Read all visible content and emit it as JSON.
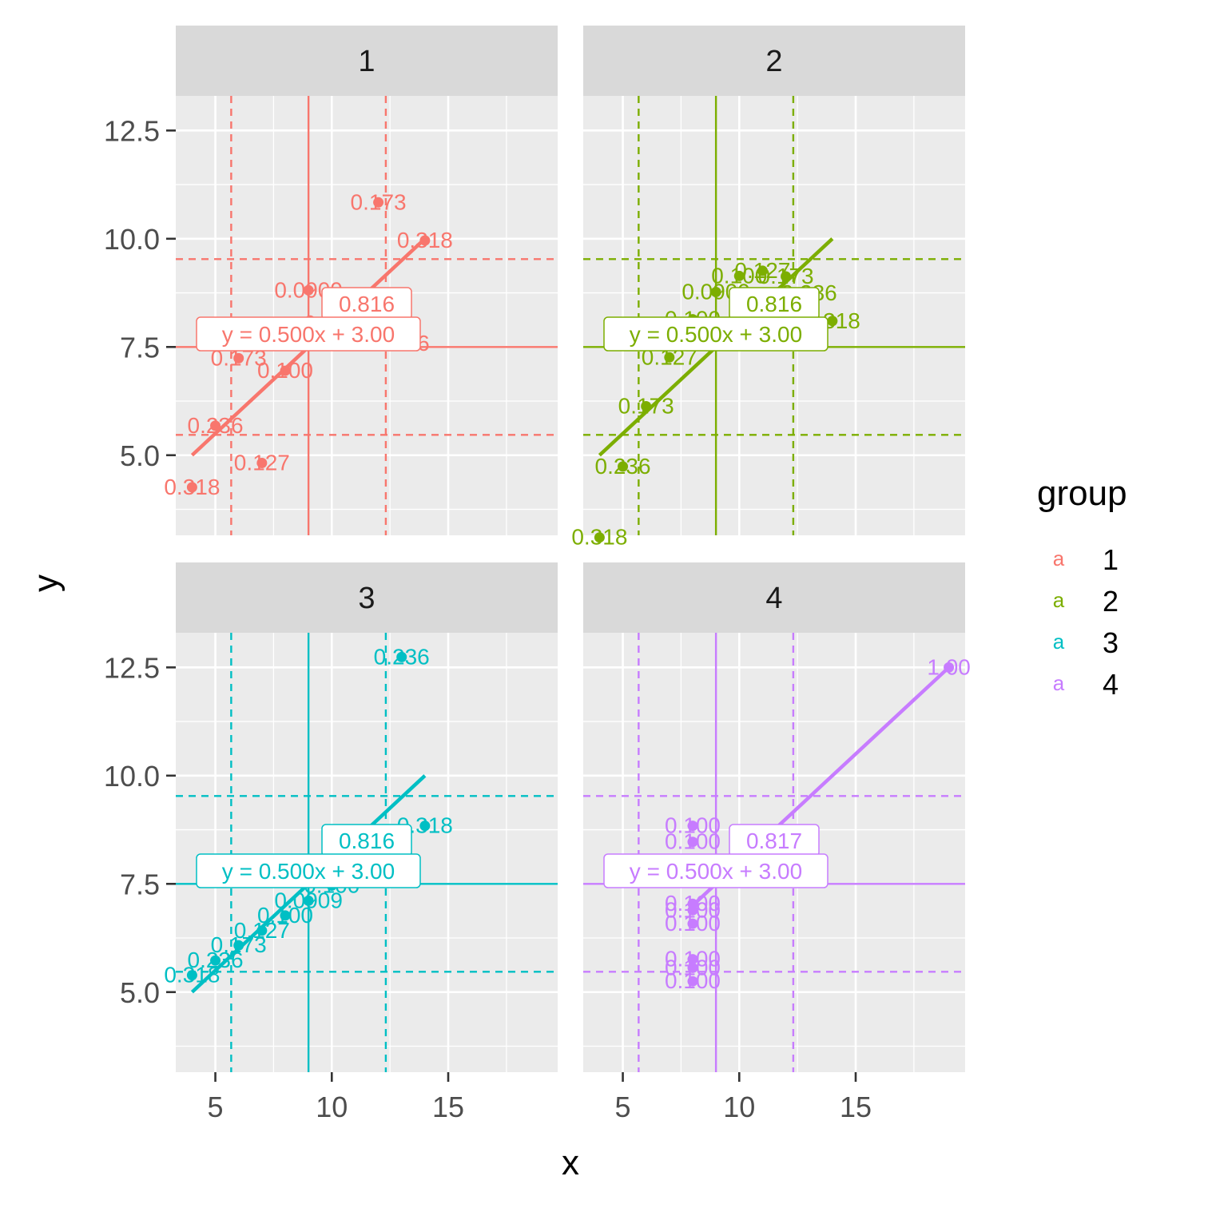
{
  "chart_data": {
    "type": "scatter",
    "facet_var": "group",
    "xlabel": "x",
    "ylabel": "y",
    "xlim": [
      3.3,
      19.7
    ],
    "ylim": [
      3.15,
      13.3
    ],
    "xticks": [
      "5",
      "10",
      "15"
    ],
    "xtick_values": [
      5,
      10,
      15
    ],
    "yticks": [
      "5.0",
      "7.5",
      "10.0",
      "12.5"
    ],
    "ytick_values": [
      5.0,
      7.5,
      10.0,
      12.5
    ],
    "grid": true,
    "legend": {
      "title": "group",
      "position": "right",
      "key_glyph": "a",
      "entries": [
        "1",
        "2",
        "3",
        "4"
      ]
    },
    "reference_lines": {
      "mean_x": 9,
      "mean_y": 7.5,
      "dashed_x": [
        5.68,
        12.32
      ],
      "dashed_y": [
        5.47,
        9.53
      ]
    },
    "panels": [
      {
        "strip": "1",
        "color": "#F8766D",
        "equation": "y = 0.500x + 3.00",
        "r_label": "0.816",
        "fit": {
          "x0": 4,
          "x1": 14,
          "slope": 0.5,
          "intercept": 3.0
        },
        "points": [
          {
            "x": 10,
            "y": 8.04,
            "label": "0.100"
          },
          {
            "x": 8,
            "y": 6.95,
            "label": "0.100"
          },
          {
            "x": 13,
            "y": 7.58,
            "label": "0.236"
          },
          {
            "x": 9,
            "y": 8.81,
            "label": "0.0909"
          },
          {
            "x": 11,
            "y": 8.33,
            "label": "0.127"
          },
          {
            "x": 14,
            "y": 9.96,
            "label": "0.318"
          },
          {
            "x": 6,
            "y": 7.24,
            "label": "0.173"
          },
          {
            "x": 4,
            "y": 4.26,
            "label": "0.318"
          },
          {
            "x": 12,
            "y": 10.84,
            "label": "0.173"
          },
          {
            "x": 7,
            "y": 4.82,
            "label": "0.127"
          },
          {
            "x": 5,
            "y": 5.68,
            "label": "0.236"
          }
        ]
      },
      {
        "strip": "2",
        "color": "#7CAE00",
        "equation": "y = 0.500x + 3.00",
        "r_label": "0.816",
        "fit": {
          "x0": 4,
          "x1": 14,
          "slope": 0.5,
          "intercept": 3.0
        },
        "points": [
          {
            "x": 10,
            "y": 9.14,
            "label": "0.100"
          },
          {
            "x": 8,
            "y": 8.14,
            "label": "0.100"
          },
          {
            "x": 13,
            "y": 8.74,
            "label": "0.236"
          },
          {
            "x": 9,
            "y": 8.77,
            "label": "0.0909"
          },
          {
            "x": 11,
            "y": 9.26,
            "label": "0.127"
          },
          {
            "x": 14,
            "y": 8.1,
            "label": "0.318"
          },
          {
            "x": 6,
            "y": 6.13,
            "label": "0.173"
          },
          {
            "x": 4,
            "y": 3.1,
            "label": "0.318"
          },
          {
            "x": 12,
            "y": 9.13,
            "label": "0.173"
          },
          {
            "x": 7,
            "y": 7.26,
            "label": "0.127"
          },
          {
            "x": 5,
            "y": 4.74,
            "label": "0.236"
          }
        ]
      },
      {
        "strip": "3",
        "color": "#00BFC4",
        "equation": "y = 0.500x + 3.00",
        "r_label": "0.816",
        "fit": {
          "x0": 4,
          "x1": 14,
          "slope": 0.5,
          "intercept": 3.0
        },
        "points": [
          {
            "x": 10,
            "y": 7.46,
            "label": "0.100"
          },
          {
            "x": 8,
            "y": 6.77,
            "label": "0.100"
          },
          {
            "x": 13,
            "y": 12.74,
            "label": "0.236"
          },
          {
            "x": 9,
            "y": 7.11,
            "label": "0.0909"
          },
          {
            "x": 11,
            "y": 7.81,
            "label": "0.127"
          },
          {
            "x": 14,
            "y": 8.84,
            "label": "0.318"
          },
          {
            "x": 6,
            "y": 6.08,
            "label": "0.173"
          },
          {
            "x": 4,
            "y": 5.39,
            "label": "0.318"
          },
          {
            "x": 12,
            "y": 8.15,
            "label": "0.173"
          },
          {
            "x": 7,
            "y": 6.42,
            "label": "0.127"
          },
          {
            "x": 5,
            "y": 5.73,
            "label": "0.236"
          }
        ]
      },
      {
        "strip": "4",
        "color": "#C77CFF",
        "equation": "y = 0.500x + 3.00",
        "r_label": "0.817",
        "fit": {
          "x0": 8,
          "x1": 19,
          "slope": 0.5,
          "intercept": 3.0
        },
        "points": [
          {
            "x": 8,
            "y": 6.58,
            "label": "0.100"
          },
          {
            "x": 8,
            "y": 5.76,
            "label": "0.100"
          },
          {
            "x": 8,
            "y": 7.71,
            "label": "0.100"
          },
          {
            "x": 8,
            "y": 8.84,
            "label": "0.100"
          },
          {
            "x": 8,
            "y": 8.47,
            "label": "0.100"
          },
          {
            "x": 8,
            "y": 7.04,
            "label": "0.100"
          },
          {
            "x": 8,
            "y": 5.25,
            "label": "0.100"
          },
          {
            "x": 19,
            "y": 12.5,
            "label": "1.00"
          },
          {
            "x": 8,
            "y": 5.56,
            "label": "0.100"
          },
          {
            "x": 8,
            "y": 7.91,
            "label": "0.100"
          },
          {
            "x": 8,
            "y": 6.89,
            "label": "0.100"
          }
        ]
      }
    ]
  }
}
